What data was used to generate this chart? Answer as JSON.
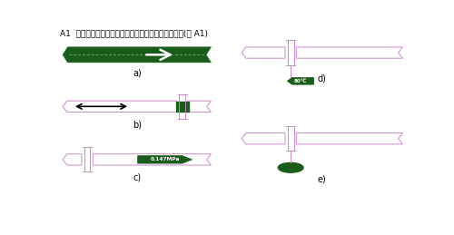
{
  "title": "A1  基本识别色和流向、压力、温度等标识方法参考图(图 A1)",
  "bg_color": "#ffffff",
  "pipe_color": "#cc88cc",
  "green_dark": "#1a5c1a",
  "black": "#000000",
  "label_a": "a)",
  "label_b": "b)",
  "label_c": "c)",
  "label_d": "d)",
  "label_e": "e)",
  "text_80c": "80℃",
  "text_mpa": "0.147MPa"
}
